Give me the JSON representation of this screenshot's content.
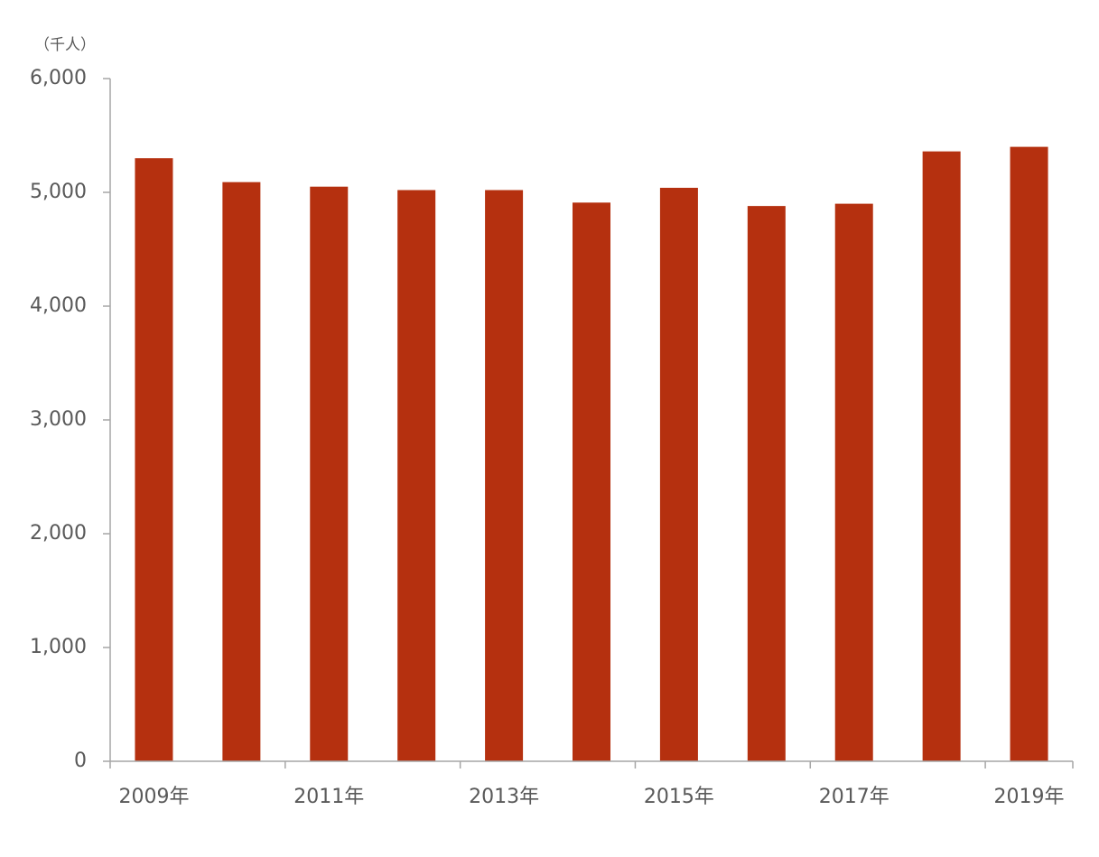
{
  "chart_data": {
    "type": "bar",
    "unit_label": "（千人）",
    "categories": [
      "2009年",
      null,
      "2011年",
      null,
      "2013年",
      null,
      "2015年",
      null,
      "2017年",
      null,
      "2019年"
    ],
    "values": [
      5300,
      5090,
      5050,
      5020,
      5020,
      4910,
      5040,
      4880,
      4900,
      5360,
      5400
    ],
    "color": "#b5300f",
    "ylim": [
      0,
      6000
    ],
    "yticks": [
      0,
      {
        "value": 1000,
        "label": "1,000"
      },
      {
        "value": 2000,
        "label": "2,000"
      },
      {
        "value": 3000,
        "label": "3,000"
      },
      {
        "value": 4000,
        "label": "4,000"
      },
      {
        "value": 5000,
        "label": "5,000"
      },
      {
        "value": 6000,
        "label": "6,000"
      }
    ],
    "grid": false
  }
}
